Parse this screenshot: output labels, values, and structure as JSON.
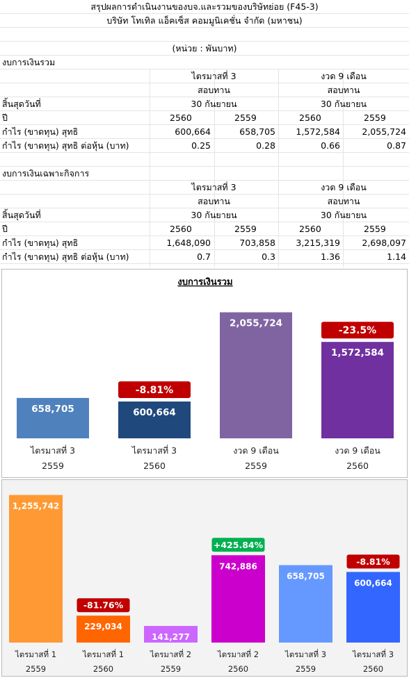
{
  "header": {
    "title": "สรุปผลการดำเนินงานของบจ.และรวมของบริษัทย่อย (F45-3)",
    "company": "บริษัท โทเทิล แอ็คเซ็ส คอมมูนิเคชั่น จำกัด (มหาชน)",
    "unit": "(หน่วย : พันบาท)"
  },
  "consolidated": {
    "section_label": "งบการเงินรวม",
    "period_quarter": "ไตรมาสที่ 3",
    "period_9m": "งวด 9 เดือน",
    "review_q": "สอบทาน",
    "review_9m": "สอบทาน",
    "end_label": "สิ้นสุดวันที่",
    "end_date_q": "30 กันยายน",
    "end_date_9m": "30 กันยายน",
    "year_label": "ปี",
    "years": [
      "2560",
      "2559",
      "2560",
      "2559"
    ],
    "profit_label": "กำไร (ขาดทุน) สุทธิ",
    "profit": [
      "600,664",
      "658,705",
      "1,572,584",
      "2,055,724"
    ],
    "eps_label": "กำไร (ขาดทุน) สุทธิ ต่อหุ้น (บาท)",
    "eps": [
      "0.25",
      "0.28",
      "0.66",
      "0.87"
    ]
  },
  "separate": {
    "section_label": "งบการเงินเฉพาะกิจการ",
    "period_quarter": "ไตรมาสที่ 3",
    "period_9m": "งวด 9 เดือน",
    "review_q": "สอบทาน",
    "review_9m": "สอบทาน",
    "end_label": "สิ้นสุดวันที่",
    "end_date_q": "30 กันยายน",
    "end_date_9m": "30 กันยายน",
    "year_label": "ปี",
    "years": [
      "2560",
      "2559",
      "2560",
      "2559"
    ],
    "profit_label": "กำไร (ขาดทุน) สุทธิ",
    "profit": [
      "1,648,090",
      "703,858",
      "3,215,319",
      "2,698,097"
    ],
    "eps_label": "กำไร (ขาดทุน) สุทธิ ต่อหุ้น (บาท)",
    "eps": [
      "0.7",
      "0.3",
      "1.36",
      "1.14"
    ]
  },
  "chart_data": [
    {
      "type": "bar",
      "title": "งบการเงินรวม",
      "categories": [
        "ไตรมาสที่ 3",
        "ไตรมาสที่ 3",
        "งวด 9 เดือน",
        "งวด 9 เดือน"
      ],
      "sub_categories": [
        "2559",
        "2560",
        "2559",
        "2560"
      ],
      "values": [
        658705,
        600664,
        2055724,
        1572584
      ],
      "value_labels": [
        "658,705",
        "600,664",
        "2,055,724",
        "1,572,584"
      ],
      "bar_colors": [
        "#4f81bd",
        "#1f497d",
        "#8064a2",
        "#7030a0"
      ],
      "change_labels": [
        "",
        "-8.81%",
        "",
        "-23.5%"
      ],
      "change_colors": [
        "",
        "#c00000",
        "",
        "#c00000"
      ],
      "ylim": [
        0,
        2300000
      ],
      "grid": false,
      "legend": "none"
    },
    {
      "type": "bar",
      "title": "",
      "categories": [
        "ไตรมาสที่ 1",
        "ไตรมาสที่ 1",
        "ไตรมาสที่ 2",
        "ไตรมาสที่ 2",
        "ไตรมาสที่ 3",
        "ไตรมาสที่ 3"
      ],
      "sub_categories": [
        "2559",
        "2560",
        "2559",
        "2560",
        "2559",
        "2560"
      ],
      "values": [
        1255742,
        229034,
        141277,
        742886,
        658705,
        600664
      ],
      "value_labels": [
        "1,255,742",
        "229,034",
        "141,277",
        "742,886",
        "658,705",
        "600,664"
      ],
      "bar_colors": [
        "#ff9933",
        "#ff6600",
        "#cc66ff",
        "#cc00cc",
        "#6699ff",
        "#3366ff"
      ],
      "change_labels": [
        "",
        "-81.76%",
        "",
        "+425.84%",
        "",
        "-8.81%"
      ],
      "change_colors": [
        "",
        "#c00000",
        "",
        "#00b050",
        "",
        "#c00000"
      ],
      "ylim": [
        0,
        1300000
      ],
      "grid": false,
      "legend": "none"
    }
  ]
}
